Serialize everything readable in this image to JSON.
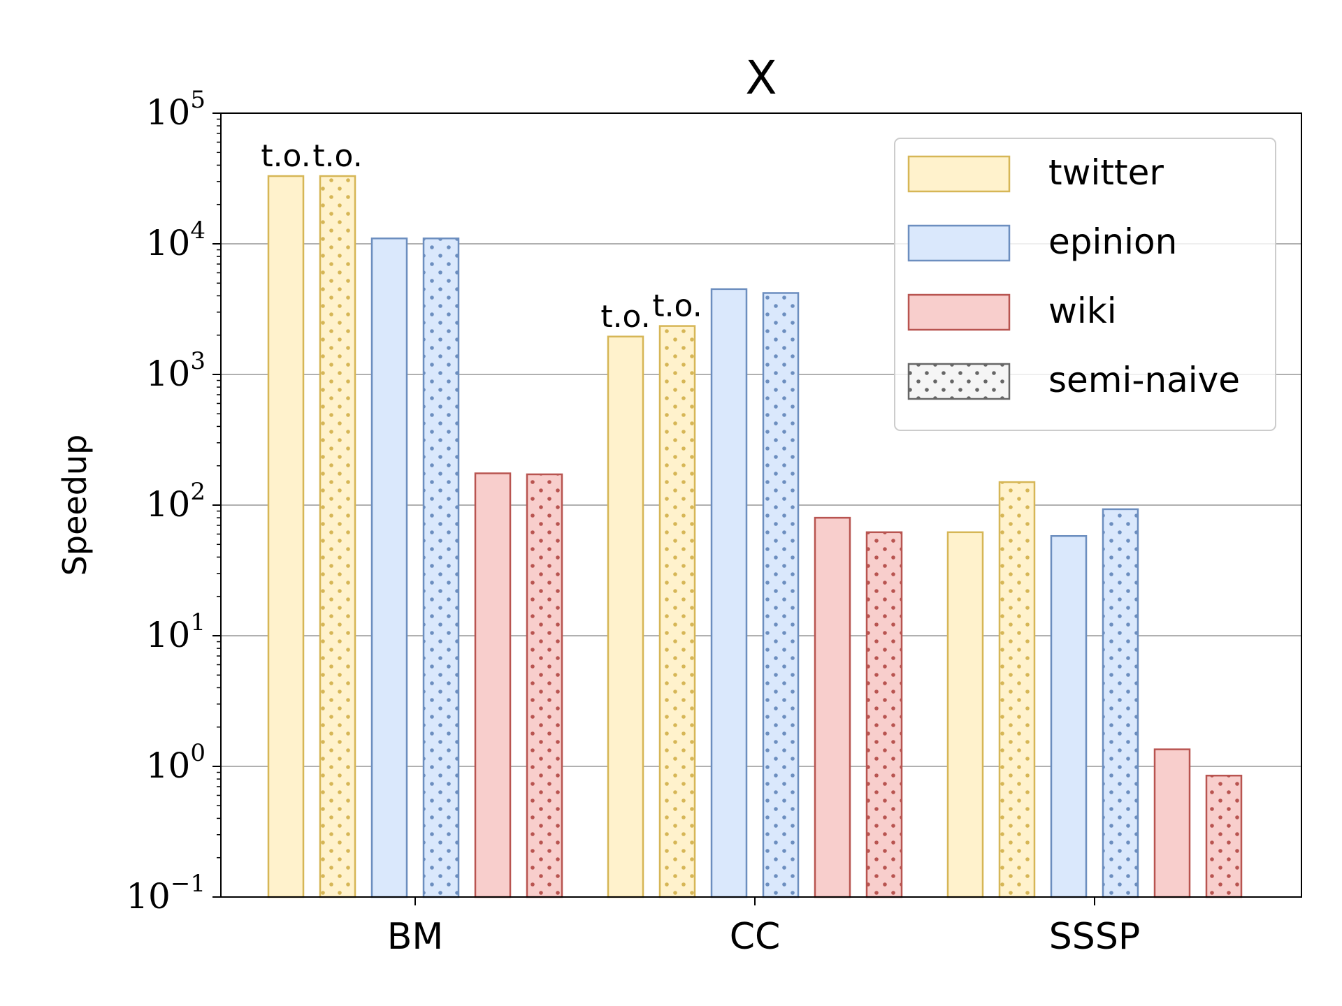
{
  "chart_data": {
    "type": "bar",
    "title": "X",
    "xlabel": "",
    "ylabel": "Speedup",
    "yscale": "log",
    "ylim": [
      0.1,
      100000
    ],
    "grid": "y-major",
    "legend_position": "top-right",
    "categories": [
      "BM",
      "CC",
      "SSSP"
    ],
    "y_ticks": [
      {
        "base": "10",
        "exp": "−1"
      },
      {
        "base": "10",
        "exp": "0"
      },
      {
        "base": "10",
        "exp": "1"
      },
      {
        "base": "10",
        "exp": "2"
      },
      {
        "base": "10",
        "exp": "3"
      },
      {
        "base": "10",
        "exp": "4"
      },
      {
        "base": "10",
        "exp": "5"
      }
    ],
    "series": [
      {
        "name": "twitter",
        "dataset": "twitter",
        "hatch": false,
        "values": [
          33000,
          1950,
          62
        ]
      },
      {
        "name": "",
        "dataset": "twitter",
        "hatch": true,
        "values": [
          33000,
          2350,
          150
        ]
      },
      {
        "name": "epinion",
        "dataset": "epinion",
        "hatch": false,
        "values": [
          11000,
          4500,
          58
        ]
      },
      {
        "name": "",
        "dataset": "epinion",
        "hatch": true,
        "values": [
          11000,
          4200,
          93
        ]
      },
      {
        "name": "wiki",
        "dataset": "wiki",
        "hatch": false,
        "values": [
          175,
          80,
          1.35
        ]
      },
      {
        "name": "",
        "dataset": "wiki",
        "hatch": true,
        "values": [
          172,
          62,
          0.85
        ]
      }
    ],
    "annotations": [
      {
        "text": "t.o.",
        "category": 0,
        "series": 0
      },
      {
        "text": "t.o.",
        "category": 0,
        "series": 1
      },
      {
        "text": "t.o.",
        "category": 1,
        "series": 0
      },
      {
        "text": "t.o.",
        "category": 1,
        "series": 1
      }
    ],
    "legend": [
      {
        "label": "twitter",
        "dataset": "twitter",
        "hatch": false
      },
      {
        "label": "epinion",
        "dataset": "epinion",
        "hatch": false
      },
      {
        "label": "wiki",
        "dataset": "wiki",
        "hatch": false
      },
      {
        "label": "semi-naive",
        "dataset": "neutral",
        "hatch": true
      }
    ],
    "colors": {
      "twitter": {
        "fill": "#fff2cc",
        "stroke": "#d6b656"
      },
      "epinion": {
        "fill": "#dae8fc",
        "stroke": "#6c8ebf"
      },
      "wiki": {
        "fill": "#f8cecc",
        "stroke": "#b85450"
      },
      "neutral": {
        "fill": "#f5f5f5",
        "stroke": "#666666"
      },
      "grid": "#b0b0b0",
      "axis": "#000000"
    }
  }
}
